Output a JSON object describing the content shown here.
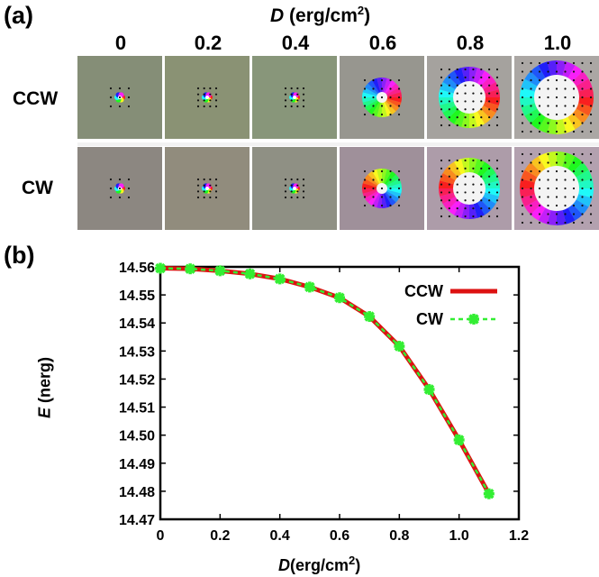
{
  "panel_a": {
    "label": "(a)",
    "title_var": "D",
    "title_unit": "(erg/cm",
    "title_exp": "2",
    "title_close": ")",
    "d_values": [
      "0",
      "0.2",
      "0.4",
      "0.6",
      "0.8",
      "1.0"
    ],
    "rows": [
      "CCW",
      "CW"
    ]
  },
  "panel_b": {
    "label": "(b)"
  },
  "chart_data": {
    "type": "line",
    "title": "",
    "xlabel": "D (erg/cm^2)",
    "ylabel": "E (nerg)",
    "xlim": [
      0,
      1.2
    ],
    "ylim": [
      14.47,
      14.56
    ],
    "x_ticks": [
      "0",
      "0.2",
      "0.4",
      "0.6",
      "0.8",
      "1.0",
      "1.2"
    ],
    "y_ticks": [
      "14.47",
      "14.48",
      "14.49",
      "14.50",
      "14.51",
      "14.52",
      "14.53",
      "14.54",
      "14.55",
      "14.56"
    ],
    "x": [
      0,
      0.1,
      0.2,
      0.3,
      0.4,
      0.5,
      0.6,
      0.7,
      0.8,
      0.9,
      1.0,
      1.1
    ],
    "series": [
      {
        "name": "CCW",
        "color": "#dd1111",
        "values": [
          14.5595,
          14.5593,
          14.5586,
          14.5575,
          14.5557,
          14.5528,
          14.549,
          14.5423,
          14.5317,
          14.5163,
          14.4983,
          14.4791
        ]
      },
      {
        "name": "CW",
        "color": "#33ee33",
        "values": [
          14.5595,
          14.5593,
          14.5586,
          14.5575,
          14.5557,
          14.5528,
          14.549,
          14.5423,
          14.5317,
          14.5163,
          14.4983,
          14.4791
        ]
      }
    ],
    "legend": "top-right"
  },
  "axis_labels": {
    "x_var": "D",
    "x_unit": "(erg/cm",
    "x_exp": "2",
    "x_close": ")",
    "y_var": "E",
    "y_unit": "(nerg)"
  }
}
